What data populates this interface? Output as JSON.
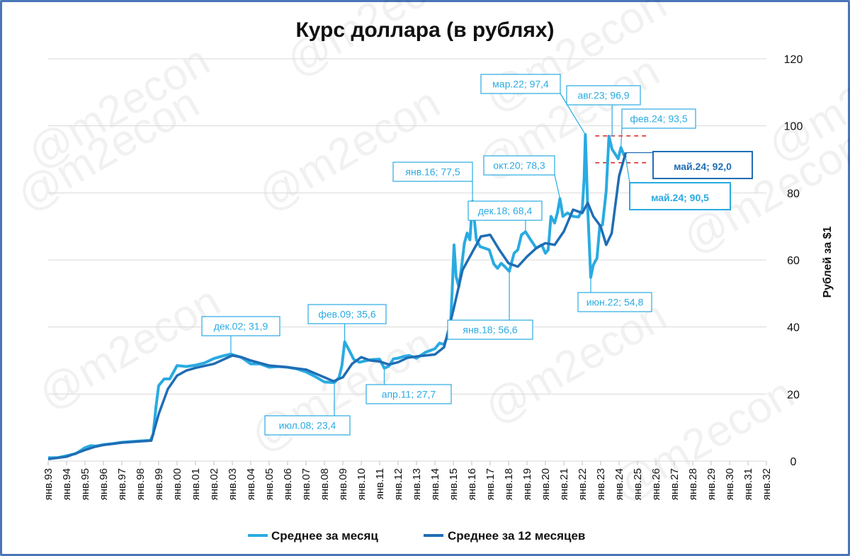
{
  "watermark": "@m2econ",
  "colors": {
    "monthly": "#29abe2",
    "annual": "#1f6db5",
    "grid": "#d9d9d9",
    "ref": "#e02020",
    "frame": "#4a76b8"
  },
  "chart_data": {
    "type": "line",
    "title": "Курс доллара (в рублях)",
    "ylabel": "Рублей за $1",
    "ylim": [
      0,
      120
    ],
    "yticks": [
      "0",
      "20",
      "40",
      "60",
      "80",
      "100",
      "120"
    ],
    "xlim": [
      1993,
      2032
    ],
    "xticks": [
      "янв.93",
      "янв.94",
      "янв.95",
      "янв.96",
      "янв.97",
      "янв.98",
      "янв.99",
      "янв.00",
      "янв.01",
      "янв.02",
      "янв.03",
      "янв.04",
      "янв.05",
      "янв.06",
      "янв.07",
      "янв.08",
      "янв.09",
      "янв.10",
      "янв.11",
      "янв.12",
      "янв.13",
      "янв.14",
      "янв.15",
      "янв.16",
      "янв.17",
      "янв.18",
      "янв.19",
      "янв.20",
      "янв.21",
      "янв.22",
      "янв.23",
      "янв.24",
      "янв.25",
      "янв.26",
      "янв.27",
      "янв.28",
      "янв.29",
      "янв.30",
      "янв.31",
      "янв.32"
    ],
    "grid": true,
    "legend_position": "bottom",
    "series": [
      {
        "name": "Среднее за месяц",
        "x": [
          1993.0,
          1993.5,
          1994.0,
          1994.5,
          1995.0,
          1995.3,
          1995.6,
          1996.0,
          1996.5,
          1997.0,
          1997.5,
          1998.0,
          1998.55,
          1998.7,
          1998.85,
          1999.0,
          1999.3,
          1999.6,
          2000.0,
          2000.5,
          2001.0,
          2001.5,
          2002.0,
          2002.5,
          2002.92,
          2003.5,
          2004.0,
          2004.5,
          2005.0,
          2005.5,
          2006.0,
          2006.5,
          2007.0,
          2007.5,
          2008.0,
          2008.54,
          2008.8,
          2008.95,
          2009.1,
          2009.3,
          2009.6,
          2009.9,
          2010.3,
          2010.6,
          2011.0,
          2011.25,
          2011.5,
          2011.75,
          2012.0,
          2012.3,
          2012.6,
          2013.0,
          2013.5,
          2014.0,
          2014.25,
          2014.5,
          2014.7,
          2014.85,
          2014.93,
          2015.04,
          2015.15,
          2015.3,
          2015.45,
          2015.6,
          2015.75,
          2015.9,
          2016.04,
          2016.25,
          2016.45,
          2016.7,
          2016.95,
          2017.2,
          2017.4,
          2017.6,
          2017.8,
          2018.04,
          2018.3,
          2018.5,
          2018.7,
          2018.92,
          2019.2,
          2019.5,
          2019.8,
          2020.0,
          2020.15,
          2020.3,
          2020.5,
          2020.65,
          2020.79,
          2020.95,
          2021.2,
          2021.5,
          2021.8,
          2022.0,
          2022.1,
          2022.17,
          2022.3,
          2022.46,
          2022.6,
          2022.8,
          2022.95,
          2023.1,
          2023.3,
          2023.45,
          2023.62,
          2023.8,
          2023.95,
          2024.1,
          2024.25,
          2024.36
        ],
        "values": [
          1.0,
          1.0,
          1.6,
          2.2,
          4.0,
          4.6,
          4.5,
          4.9,
          5.2,
          5.6,
          5.8,
          6.0,
          6.2,
          8.0,
          16.0,
          22.5,
          24.5,
          24.5,
          28.5,
          28.2,
          28.6,
          29.3,
          30.6,
          31.4,
          31.9,
          30.9,
          29.0,
          29.0,
          28.0,
          28.2,
          28.0,
          27.5,
          26.6,
          25.2,
          23.6,
          23.4,
          25.0,
          28.5,
          35.6,
          33.5,
          30.3,
          29.5,
          30.0,
          30.3,
          30.4,
          27.7,
          28.3,
          30.5,
          30.7,
          31.2,
          31.5,
          30.7,
          32.5,
          33.5,
          35.2,
          34.8,
          37.5,
          41.0,
          50.0,
          64.5,
          55.0,
          52.0,
          58.0,
          65.0,
          68.0,
          66.0,
          77.5,
          66.0,
          64.0,
          63.5,
          63.0,
          58.8,
          57.5,
          59.0,
          58.0,
          56.6,
          62.0,
          63.0,
          67.5,
          68.4,
          66.0,
          63.5,
          64.5,
          62.0,
          63.0,
          73.0,
          71.0,
          74.0,
          78.3,
          73.0,
          74.0,
          73.0,
          72.8,
          75.0,
          84.0,
          97.4,
          75.0,
          54.8,
          58.5,
          60.5,
          70.0,
          70.5,
          80.5,
          96.9,
          93.0,
          91.5,
          90.2,
          93.5,
          91.5,
          90.5
        ]
      },
      {
        "name": "Среднее за 12 месяцев",
        "x": [
          1993.0,
          1994.0,
          1995.0,
          1995.5,
          1996.0,
          1997.0,
          1998.0,
          1998.6,
          1999.0,
          1999.5,
          2000.0,
          2000.5,
          2001.0,
          2002.0,
          2003.0,
          2003.5,
          2004.0,
          2005.0,
          2006.0,
          2007.0,
          2008.0,
          2008.5,
          2009.0,
          2009.5,
          2010.0,
          2010.5,
          2011.0,
          2011.5,
          2012.0,
          2012.5,
          2013.0,
          2014.0,
          2014.5,
          2015.0,
          2015.5,
          2016.0,
          2016.5,
          2017.0,
          2017.5,
          2018.0,
          2018.5,
          2019.0,
          2019.5,
          2020.0,
          2020.5,
          2021.0,
          2021.5,
          2022.0,
          2022.3,
          2022.6,
          2023.0,
          2023.3,
          2023.6,
          2024.0,
          2024.36
        ],
        "values": [
          0.6,
          1.3,
          3.3,
          4.2,
          4.8,
          5.5,
          5.9,
          6.1,
          14.0,
          21.5,
          25.5,
          27.0,
          27.8,
          29.0,
          31.5,
          31.0,
          30.0,
          28.5,
          28.0,
          27.3,
          25.0,
          23.8,
          25.0,
          29.0,
          31.0,
          30.0,
          29.7,
          28.8,
          29.5,
          30.8,
          31.2,
          31.8,
          34.0,
          45.0,
          57.0,
          62.0,
          67.0,
          67.5,
          63.0,
          59.0,
          58.0,
          61.0,
          63.5,
          65.0,
          64.5,
          68.5,
          75.0,
          74.0,
          77.0,
          73.0,
          70.0,
          64.5,
          68.0,
          85.0,
          92.0
        ]
      }
    ],
    "callouts": [
      {
        "label": "дек.02; 31,9"
      },
      {
        "label": "июл.08; 23,4"
      },
      {
        "label": "фев.09; 35,6"
      },
      {
        "label": "апр.11; 27,7"
      },
      {
        "label": "янв.16; 77,5"
      },
      {
        "label": "янв.18; 56,6"
      },
      {
        "label": "дек.18; 68,4"
      },
      {
        "label": "окт.20; 78,3"
      },
      {
        "label": "мар.22; 97,4"
      },
      {
        "label": "июн.22; 54,8"
      },
      {
        "label": "авг.23; 96,9"
      },
      {
        "label": "фев.24; 93,5"
      },
      {
        "label": "май.24; 92,0"
      },
      {
        "label": "май.24; 90,5"
      }
    ]
  }
}
